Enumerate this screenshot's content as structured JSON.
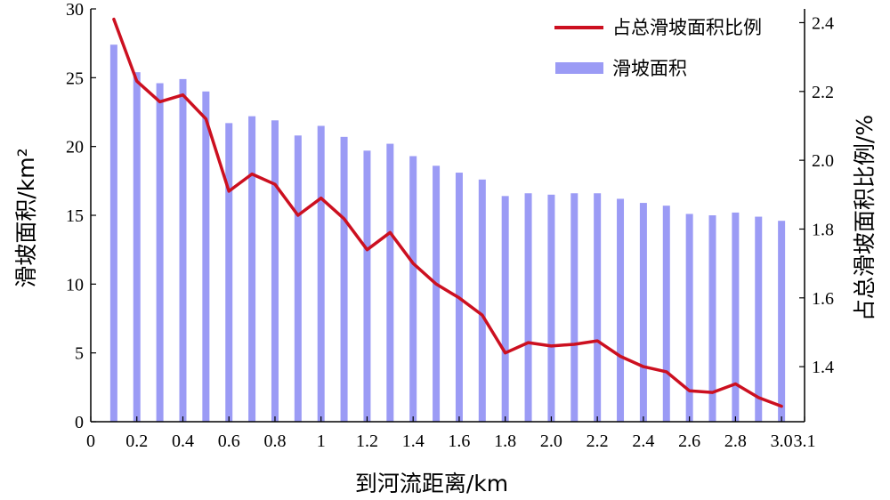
{
  "colors": {
    "bar": "#9b9bf5",
    "line": "#cc1020",
    "axis": "#000000"
  },
  "chart_data": {
    "type": "bar",
    "xlabel": "到河流距离/km",
    "ylabel": "滑坡面积/km²",
    "y2label": "占总滑坡面积比例/%",
    "xlim": [
      0,
      3.1
    ],
    "ylim": [
      0,
      30
    ],
    "y2lim": [
      1.24,
      2.44
    ],
    "x_ticks": [
      "0",
      "0.2",
      "0.4",
      "0.6",
      "0.8",
      "1",
      "1.2",
      "1.4",
      "1.6",
      "1.8",
      "2.0",
      "2.2",
      "2.4",
      "2.6",
      "2.8",
      "3.0",
      "3.1"
    ],
    "y_ticks": [
      "0",
      "5",
      "10",
      "15",
      "20",
      "25",
      "30"
    ],
    "y2_ticks": [
      "1.4",
      "1.6",
      "1.8",
      "2.0",
      "2.2",
      "2.4"
    ],
    "x": [
      0.1,
      0.2,
      0.3,
      0.4,
      0.5,
      0.6,
      0.7,
      0.8,
      0.9,
      1.0,
      1.1,
      1.2,
      1.3,
      1.4,
      1.5,
      1.6,
      1.7,
      1.8,
      1.9,
      2.0,
      2.1,
      2.2,
      2.3,
      2.4,
      2.5,
      2.6,
      2.7,
      2.8,
      2.9,
      3.0
    ],
    "series": [
      {
        "name": "滑坡面积",
        "type": "bar",
        "axis": "left",
        "values": [
          27.4,
          25.4,
          24.6,
          24.9,
          24.0,
          21.7,
          22.2,
          21.9,
          20.8,
          21.5,
          20.7,
          19.7,
          20.2,
          19.3,
          18.6,
          18.1,
          17.6,
          16.4,
          16.6,
          16.5,
          16.6,
          16.6,
          16.2,
          15.9,
          15.7,
          15.1,
          15.0,
          15.2,
          14.9,
          14.6
        ]
      },
      {
        "name": "占总滑坡面积比例",
        "type": "line",
        "axis": "right",
        "values": [
          2.41,
          2.23,
          2.17,
          2.19,
          2.12,
          1.91,
          1.96,
          1.93,
          1.84,
          1.89,
          1.83,
          1.74,
          1.79,
          1.7,
          1.64,
          1.6,
          1.55,
          1.44,
          1.47,
          1.46,
          1.465,
          1.475,
          1.43,
          1.4,
          1.385,
          1.33,
          1.325,
          1.35,
          1.31,
          1.285
        ]
      }
    ],
    "legend": {
      "position": "top-right"
    }
  }
}
